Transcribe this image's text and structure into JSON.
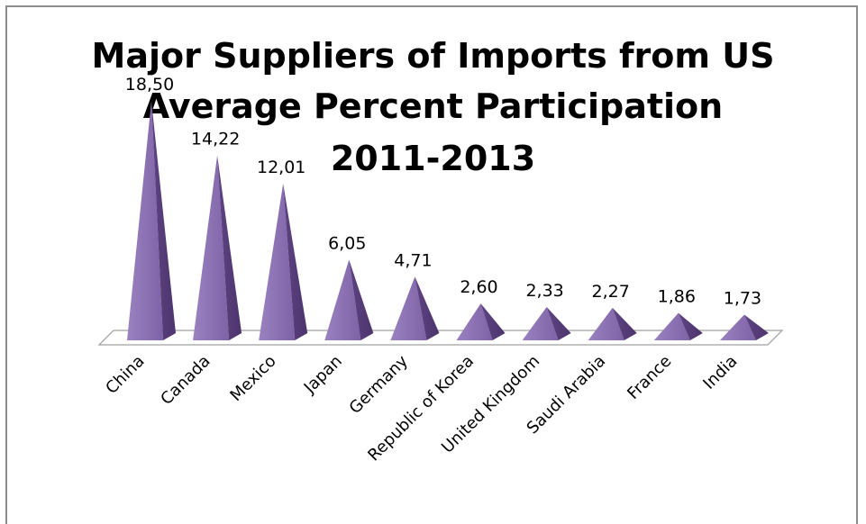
{
  "chart_data": {
    "type": "bar",
    "style": "3d-pyramid",
    "title_lines": [
      "Major Suppliers of Imports from US",
      "Average Percent Participation",
      "2011-2013"
    ],
    "categories": [
      "China",
      "Canada",
      "Mexico",
      "Japan",
      "Germany",
      "Republic of Korea",
      "United Kingdom",
      "Saudi Arabia",
      "France",
      "India"
    ],
    "values": [
      18.5,
      14.22,
      12.01,
      6.05,
      4.71,
      2.6,
      2.33,
      2.27,
      1.86,
      1.73
    ],
    "value_labels": [
      "18,50",
      "14,22",
      "12,01",
      "6,05",
      "4,71",
      "2,60",
      "2,33",
      "2,27",
      "1,86",
      "1,73"
    ],
    "ylim": [
      0,
      18.5
    ],
    "grid": false,
    "legend": "none",
    "bar_color": "#8064a2"
  }
}
